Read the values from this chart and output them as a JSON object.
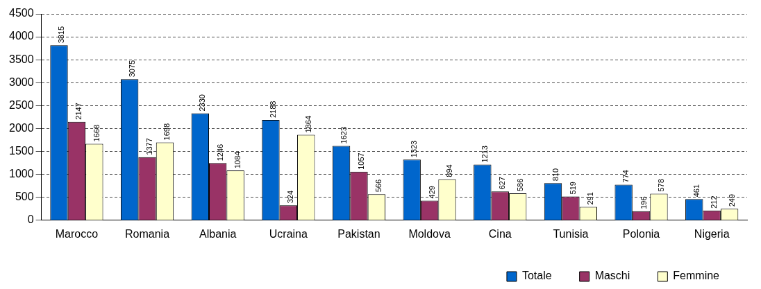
{
  "chart_data": {
    "type": "bar",
    "categories": [
      "Marocco",
      "Romania",
      "Albania",
      "Ucraina",
      "Pakistan",
      "Moldova",
      "Cina",
      "Tunisia",
      "Polonia",
      "Nigeria"
    ],
    "series": [
      {
        "name": "Totale",
        "color": "#0066cc",
        "values": [
          3815,
          3075,
          2330,
          2188,
          1623,
          1323,
          1213,
          810,
          774,
          461
        ]
      },
      {
        "name": "Maschi",
        "color": "#993366",
        "values": [
          2147,
          1377,
          1246,
          324,
          1057,
          429,
          627,
          519,
          196,
          212
        ]
      },
      {
        "name": "Femmine",
        "color": "#ffffcc",
        "values": [
          1668,
          1698,
          1084,
          1864,
          566,
          894,
          586,
          291,
          578,
          249
        ]
      }
    ],
    "ylim": [
      0,
      4500
    ],
    "yticks": [
      0,
      500,
      1000,
      1500,
      2000,
      2500,
      3000,
      3500,
      4000,
      4500
    ],
    "grid": "y",
    "legend": "bottom right",
    "data_labels": true
  }
}
